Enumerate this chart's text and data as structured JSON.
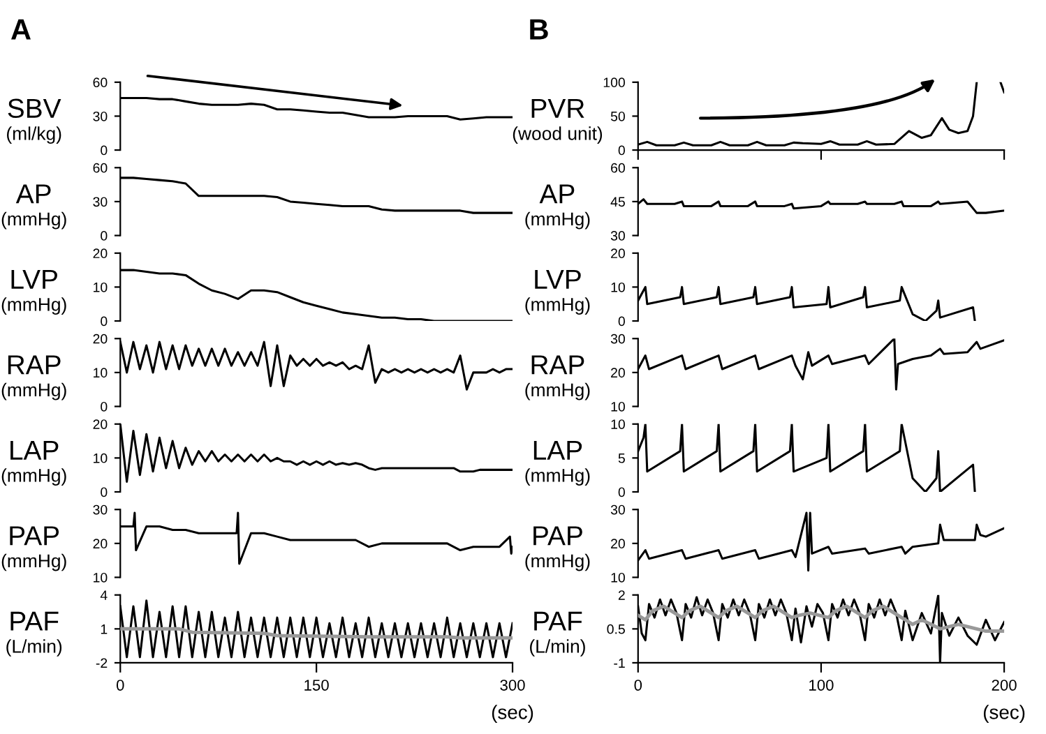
{
  "chart_data": [
    {
      "type": "line",
      "title": "A",
      "ylabel": "SBV\n(ml/kg)",
      "xlim": [
        0,
        300
      ],
      "ylim": [
        0,
        60
      ],
      "yticks": [
        0,
        30,
        60
      ],
      "tick_labels": "y",
      "grid": false,
      "legend": false,
      "series": [
        {
          "color": "#000000",
          "x": [
            0,
            10,
            20,
            30,
            40,
            50,
            60,
            70,
            80,
            90,
            100,
            110,
            120,
            130,
            140,
            150,
            160,
            170,
            180,
            190,
            200,
            210,
            220,
            230,
            240,
            250,
            260,
            270,
            280,
            290,
            300
          ],
          "values": [
            46,
            46,
            46,
            45,
            45,
            43,
            41,
            40,
            40,
            40,
            41,
            40,
            36,
            36,
            35,
            34,
            33,
            33,
            31,
            29,
            29,
            29,
            30,
            30,
            30,
            30,
            27,
            28,
            29,
            29,
            29
          ]
        }
      ]
    },
    {
      "type": "line",
      "ylabel": "AP\n(mmHg)",
      "xlim": [
        0,
        300
      ],
      "ylim": [
        0,
        60
      ],
      "yticks": [
        0,
        30,
        60
      ],
      "tick_labels": "y",
      "grid": false,
      "legend": false,
      "series": [
        {
          "color": "#000000",
          "x": [
            0,
            10,
            20,
            30,
            40,
            50,
            60,
            70,
            80,
            90,
            100,
            110,
            120,
            130,
            140,
            150,
            160,
            170,
            180,
            190,
            200,
            210,
            220,
            230,
            240,
            250,
            260,
            270,
            280,
            290,
            300
          ],
          "values": [
            51,
            51,
            50,
            49,
            48,
            46,
            35,
            35,
            35,
            35,
            35,
            35,
            34,
            30,
            29,
            28,
            27,
            26,
            26,
            26,
            23,
            22,
            22,
            22,
            22,
            22,
            22,
            20,
            20,
            20,
            20
          ]
        }
      ]
    },
    {
      "type": "line",
      "ylabel": "LVP\n(mmHg)",
      "xlim": [
        0,
        300
      ],
      "ylim": [
        0,
        20
      ],
      "yticks": [
        0,
        10,
        20
      ],
      "tick_labels": "y",
      "grid": false,
      "legend": false,
      "series": [
        {
          "color": "#000000",
          "x": [
            0,
            10,
            20,
            30,
            40,
            50,
            60,
            70,
            80,
            90,
            100,
            110,
            120,
            130,
            140,
            150,
            160,
            170,
            180,
            190,
            200,
            210,
            220,
            230,
            240,
            250,
            260,
            270,
            280,
            290,
            300
          ],
          "values": [
            15,
            15,
            14.5,
            14,
            14,
            13.5,
            11,
            9,
            8,
            6.5,
            9,
            9,
            8.5,
            7,
            5.5,
            4.5,
            3.5,
            2.5,
            2,
            1.5,
            1,
            1,
            0.5,
            0.5,
            0,
            0,
            0,
            0,
            0,
            0,
            0
          ]
        }
      ]
    },
    {
      "type": "line",
      "ylabel": "RAP\n(mmHg)",
      "xlim": [
        0,
        300
      ],
      "ylim": [
        0,
        20
      ],
      "yticks": [
        0,
        10,
        20
      ],
      "tick_labels": "y",
      "grid": false,
      "legend": false,
      "series": [
        {
          "color": "#000000",
          "x": [
            0,
            5,
            10,
            15,
            20,
            25,
            30,
            35,
            40,
            45,
            50,
            55,
            60,
            65,
            70,
            75,
            80,
            85,
            90,
            95,
            100,
            105,
            110,
            115,
            120,
            125,
            130,
            135,
            140,
            145,
            150,
            155,
            160,
            165,
            170,
            175,
            180,
            185,
            190,
            195,
            200,
            205,
            210,
            215,
            220,
            225,
            230,
            235,
            240,
            245,
            250,
            255,
            260,
            265,
            270,
            275,
            280,
            285,
            290,
            295,
            300
          ],
          "values": [
            19,
            10,
            19,
            11,
            18,
            10,
            19,
            11,
            18,
            11,
            18,
            12,
            17,
            12,
            17,
            12,
            17,
            12,
            16,
            12,
            16,
            12,
            19,
            6,
            18,
            6,
            15,
            12,
            14,
            12,
            14,
            12,
            13,
            12,
            13,
            11,
            12,
            11,
            18,
            7,
            11,
            10,
            11,
            10,
            11,
            10,
            11,
            10,
            11,
            10,
            11,
            10,
            15,
            5,
            10,
            10,
            10,
            11,
            10,
            11,
            11
          ]
        }
      ]
    },
    {
      "type": "line",
      "ylabel": "LAP\n(mmHg)",
      "xlim": [
        0,
        300
      ],
      "ylim": [
        0,
        20
      ],
      "yticks": [
        0,
        10,
        20
      ],
      "tick_labels": "y",
      "grid": false,
      "legend": false,
      "series": [
        {
          "color": "#000000",
          "x": [
            0,
            5,
            10,
            15,
            20,
            25,
            30,
            35,
            40,
            45,
            50,
            55,
            60,
            65,
            70,
            75,
            80,
            85,
            90,
            95,
            100,
            105,
            110,
            115,
            120,
            125,
            130,
            135,
            140,
            145,
            150,
            155,
            160,
            165,
            170,
            175,
            180,
            185,
            190,
            195,
            200,
            205,
            210,
            215,
            220,
            225,
            230,
            235,
            240,
            245,
            250,
            255,
            260,
            265,
            270,
            275,
            280,
            285,
            290,
            295,
            300
          ],
          "values": [
            20,
            3,
            18,
            5,
            17,
            6,
            16,
            7,
            15,
            7,
            13,
            8,
            12,
            9,
            12,
            9,
            11,
            9,
            11,
            9,
            11,
            9,
            11,
            9,
            10,
            9,
            9,
            8,
            9,
            8,
            9,
            8,
            9,
            8,
            8.5,
            8,
            8.5,
            8,
            7,
            6.5,
            7,
            7,
            7,
            7,
            7,
            7,
            7,
            7,
            7,
            7,
            7,
            7,
            6,
            6,
            6,
            6.5,
            6.5,
            6.5,
            6.5,
            6.5,
            6.5
          ]
        }
      ]
    },
    {
      "type": "line",
      "ylabel": "PAP\n(mmHg)",
      "xlim": [
        0,
        300
      ],
      "ylim": [
        10,
        30
      ],
      "yticks": [
        10,
        20,
        30
      ],
      "tick_labels": "y",
      "grid": false,
      "legend": false,
      "series": [
        {
          "color": "#000000",
          "x": [
            0,
            5,
            10,
            11,
            12,
            20,
            30,
            40,
            50,
            60,
            70,
            80,
            89,
            90,
            91,
            100,
            110,
            120,
            130,
            140,
            150,
            160,
            170,
            180,
            190,
            200,
            210,
            220,
            230,
            240,
            250,
            260,
            270,
            280,
            290,
            298,
            299,
            300
          ],
          "values": [
            25,
            25,
            25,
            29,
            18,
            25,
            25,
            24,
            24,
            23,
            23,
            23,
            23,
            29,
            14,
            23,
            23,
            22,
            21,
            21,
            21,
            21,
            21,
            21,
            19,
            20,
            20,
            20,
            20,
            20,
            20,
            18,
            19,
            19,
            19,
            22,
            17,
            19
          ]
        }
      ]
    },
    {
      "type": "line",
      "ylabel": "PAF\n(L/min)",
      "xlabel": "(sec)",
      "xlim": [
        0,
        300
      ],
      "ylim": [
        -2,
        4
      ],
      "xticks": [
        0,
        150,
        300
      ],
      "yticks": [
        -2,
        1,
        4
      ],
      "grid": false,
      "legend": false,
      "series": [
        {
          "color": "#000000",
          "x": [
            0,
            5,
            10,
            15,
            20,
            25,
            30,
            35,
            40,
            45,
            50,
            55,
            60,
            65,
            70,
            75,
            80,
            85,
            90,
            95,
            100,
            105,
            110,
            115,
            120,
            125,
            130,
            135,
            140,
            145,
            150,
            155,
            160,
            165,
            170,
            175,
            180,
            185,
            190,
            195,
            200,
            205,
            210,
            215,
            220,
            225,
            230,
            235,
            240,
            245,
            250,
            255,
            260,
            265,
            270,
            275,
            280,
            285,
            290,
            295,
            300
          ],
          "values": [
            3,
            -1.5,
            3,
            -1.5,
            3.5,
            -1.5,
            2.5,
            -1.5,
            3,
            -1.5,
            3,
            -1.5,
            2.5,
            -1.5,
            2.5,
            -1.5,
            2,
            -1.5,
            2.5,
            -1.5,
            2,
            -1.5,
            2,
            -1.5,
            2,
            -1.5,
            2,
            -1.5,
            2,
            -1.5,
            2,
            -1.5,
            1.5,
            -1.5,
            2,
            -1.5,
            1.5,
            -1.5,
            2,
            -1.5,
            1.5,
            -1.5,
            1.5,
            -1.5,
            1.5,
            -1.5,
            1.5,
            -1.5,
            1.5,
            -1.5,
            2,
            -1.5,
            1.5,
            -1.5,
            1.5,
            -1.5,
            1.5,
            -1.5,
            1.5,
            -1.5,
            1.5
          ]
        },
        {
          "color": "#999999",
          "x": [
            0,
            45,
            55,
            110,
            120,
            190,
            250,
            260,
            300
          ],
          "values": [
            1.0,
            1.0,
            0.7,
            0.6,
            0.4,
            0.3,
            0.3,
            0.2,
            0.2
          ]
        }
      ]
    },
    {
      "type": "line",
      "title": "B",
      "ylabel": "PVR\n(wood unit)",
      "xlim": [
        0,
        200
      ],
      "ylim": [
        0,
        100
      ],
      "yticks": [
        0,
        50,
        100
      ],
      "xticks": [
        {
          "value": 0,
          "label": null
        },
        {
          "value": 100,
          "label": null
        },
        {
          "value": 200,
          "label": null
        }
      ],
      "tick_labels": "y",
      "grid": false,
      "legend": false,
      "series": [
        {
          "color": "#000000",
          "x": [
            0,
            5,
            10,
            20,
            25,
            30,
            40,
            45,
            50,
            60,
            65,
            70,
            80,
            85,
            90,
            100,
            105,
            110,
            120,
            125,
            130,
            140,
            148,
            155,
            160,
            166,
            170,
            175,
            180,
            183,
            185,
            186,
            198,
            200
          ],
          "values": [
            8,
            12,
            7,
            7,
            11,
            7,
            7,
            12,
            7,
            7,
            12,
            7,
            7,
            11,
            10,
            9,
            13,
            8,
            8,
            13,
            8,
            9,
            28,
            18,
            22,
            47,
            30,
            25,
            28,
            50,
            100,
            null,
            100,
            85
          ]
        }
      ]
    },
    {
      "type": "line",
      "ylabel": "AP\n(mmHg)",
      "xlim": [
        0,
        200
      ],
      "ylim": [
        30,
        60
      ],
      "yticks": [
        30,
        45,
        60
      ],
      "tick_labels": "y",
      "grid": false,
      "legend": false,
      "series": [
        {
          "color": "#000000",
          "x": [
            0,
            3,
            5,
            20,
            24,
            25,
            40,
            44,
            45,
            60,
            64,
            65,
            80,
            84,
            85,
            100,
            104,
            105,
            120,
            124,
            125,
            140,
            144,
            145,
            160,
            164,
            165,
            180,
            185,
            190,
            200
          ],
          "values": [
            44,
            46,
            44,
            44,
            45,
            43,
            43,
            45,
            43,
            43,
            45,
            43,
            43,
            44,
            42,
            43,
            45,
            44,
            44,
            45,
            44,
            44,
            45,
            43,
            43,
            45,
            44,
            45,
            40,
            40,
            41
          ]
        }
      ]
    },
    {
      "type": "line",
      "ylabel": "LVP\n(mmHg)",
      "xlim": [
        0,
        200
      ],
      "ylim": [
        0,
        20
      ],
      "yticks": [
        0,
        10,
        20
      ],
      "tick_labels": "y",
      "grid": false,
      "legend": false,
      "series": [
        {
          "color": "#000000",
          "x": [
            0,
            3,
            4,
            5,
            23,
            24,
            25,
            43,
            44,
            45,
            63,
            64,
            65,
            83,
            84,
            85,
            103,
            104,
            105,
            123,
            124,
            125,
            143,
            144,
            150,
            157,
            163,
            164,
            165,
            183,
            184
          ],
          "values": [
            6,
            9,
            10,
            5,
            7,
            10,
            5,
            7,
            10,
            5,
            7,
            10,
            5,
            7,
            10,
            4,
            5,
            10,
            4,
            7,
            10,
            4,
            6,
            10,
            2,
            0,
            3,
            6,
            1,
            4,
            0
          ]
        }
      ]
    },
    {
      "type": "line",
      "ylabel": "RAP\n(mmHg)",
      "xlim": [
        0,
        200
      ],
      "ylim": [
        10,
        30
      ],
      "yticks": [
        10,
        20,
        30
      ],
      "tick_labels": "y",
      "grid": false,
      "legend": false,
      "series": [
        {
          "color": "#000000",
          "x": [
            0,
            4,
            6,
            24,
            26,
            44,
            46,
            64,
            66,
            84,
            86,
            90,
            93,
            95,
            104,
            106,
            124,
            126,
            140,
            141,
            142,
            150,
            160,
            165,
            167,
            180,
            185,
            187,
            200
          ],
          "values": [
            21,
            25,
            21,
            25,
            21,
            25,
            21,
            25,
            21,
            25,
            22,
            18,
            26,
            22,
            25,
            22.5,
            25,
            22.5,
            30,
            15,
            22.5,
            24,
            25,
            27,
            25.5,
            26,
            29,
            27,
            29.5
          ]
        }
      ]
    },
    {
      "type": "line",
      "ylabel": "LAP\n(mmHg)",
      "xlim": [
        0,
        200
      ],
      "ylim": [
        0,
        10
      ],
      "yticks": [
        0,
        5,
        10
      ],
      "tick_labels": "y",
      "grid": false,
      "legend": false,
      "series": [
        {
          "color": "#000000",
          "x": [
            0,
            3,
            4,
            5,
            23,
            24,
            25,
            43,
            44,
            45,
            63,
            64,
            65,
            83,
            84,
            85,
            103,
            104,
            105,
            123,
            124,
            125,
            143,
            144,
            150,
            157,
            163,
            164,
            165,
            183,
            184
          ],
          "values": [
            6,
            8,
            10,
            3,
            6,
            10,
            3,
            6,
            10,
            3,
            6,
            10,
            3,
            6,
            10,
            3,
            5,
            10,
            3,
            6,
            10,
            3,
            6,
            10,
            2,
            0,
            2,
            6,
            0,
            4,
            0
          ]
        }
      ]
    },
    {
      "type": "line",
      "ylabel": "PAP\n(mmHg)",
      "xlim": [
        0,
        200
      ],
      "ylim": [
        10,
        30
      ],
      "yticks": [
        10,
        20,
        30
      ],
      "tick_labels": "y",
      "grid": false,
      "legend": false,
      "series": [
        {
          "color": "#000000",
          "x": [
            0,
            4,
            6,
            24,
            26,
            44,
            46,
            64,
            66,
            84,
            86,
            92,
            93,
            94,
            95,
            104,
            106,
            124,
            126,
            144,
            146,
            150,
            164,
            165,
            167,
            184,
            185,
            187,
            190,
            200
          ],
          "values": [
            15,
            18,
            15.5,
            18,
            15.5,
            18,
            15.5,
            18,
            15.5,
            18,
            16,
            29,
            12,
            29,
            17,
            19,
            17,
            18.5,
            17,
            19,
            17,
            19,
            20,
            25.5,
            21,
            21,
            25.5,
            22.5,
            22,
            24.5
          ]
        }
      ]
    },
    {
      "type": "line",
      "ylabel": "PAF\n(L/min)",
      "xlabel": "(sec)",
      "xlim": [
        0,
        200
      ],
      "ylim": [
        -1,
        2
      ],
      "xticks": [
        0,
        100,
        200
      ],
      "yticks": [
        -1,
        0.5,
        2
      ],
      "grid": false,
      "legend": false,
      "series": [
        {
          "color": "#000000",
          "x": [
            0,
            2,
            4,
            6,
            9,
            12,
            15,
            18,
            21,
            24,
            26,
            29,
            32,
            35,
            38,
            41,
            44,
            46,
            49,
            52,
            55,
            58,
            61,
            64,
            66,
            69,
            72,
            75,
            78,
            81,
            84,
            86,
            89,
            92,
            95,
            98,
            101,
            104,
            106,
            109,
            112,
            115,
            118,
            121,
            124,
            126,
            129,
            132,
            135,
            138,
            141,
            144,
            146,
            150,
            155,
            160,
            164,
            165,
            166,
            170,
            175,
            180,
            185,
            190,
            195,
            200
          ],
          "values": [
            1.5,
            0.3,
            0,
            1.6,
            1.0,
            1.8,
            1.1,
            1.8,
            1.2,
            0,
            1.6,
            1.0,
            1.9,
            1.1,
            1.8,
            1.2,
            0,
            1.6,
            1.0,
            1.8,
            1.1,
            1.8,
            1.2,
            0,
            1.6,
            1.0,
            1.8,
            1.1,
            1.8,
            1.2,
            0,
            1.4,
            -0.1,
            1.5,
            0.6,
            1.6,
            1.2,
            0,
            1.6,
            1.0,
            1.8,
            1.1,
            1.8,
            1.2,
            0,
            1.6,
            1.0,
            1.8,
            1.1,
            1.8,
            1.2,
            0,
            1.3,
            0,
            1.2,
            0.3,
            2,
            -1,
            1.2,
            0.2,
            1.0,
            0.2,
            -0.2,
            0.9,
            0,
            0.8
          ]
        },
        {
          "color": "#999999",
          "x": [
            0,
            4,
            8,
            14,
            24,
            28,
            34,
            44,
            48,
            54,
            64,
            68,
            74,
            84,
            88,
            94,
            104,
            108,
            114,
            124,
            128,
            134,
            144,
            150,
            155,
            165,
            170,
            175,
            185,
            190,
            200
          ],
          "values": [
            1.1,
            0.9,
            1.3,
            1.5,
            1.0,
            1.3,
            1.5,
            1.0,
            1.3,
            1.5,
            1.0,
            1.3,
            1.5,
            1.0,
            1.1,
            1.2,
            1.0,
            1.3,
            1.5,
            1.0,
            1.3,
            1.5,
            1.0,
            0.7,
            0.9,
            0.5,
            0.6,
            0.7,
            0.5,
            0.4,
            0.4
          ]
        }
      ]
    }
  ]
}
